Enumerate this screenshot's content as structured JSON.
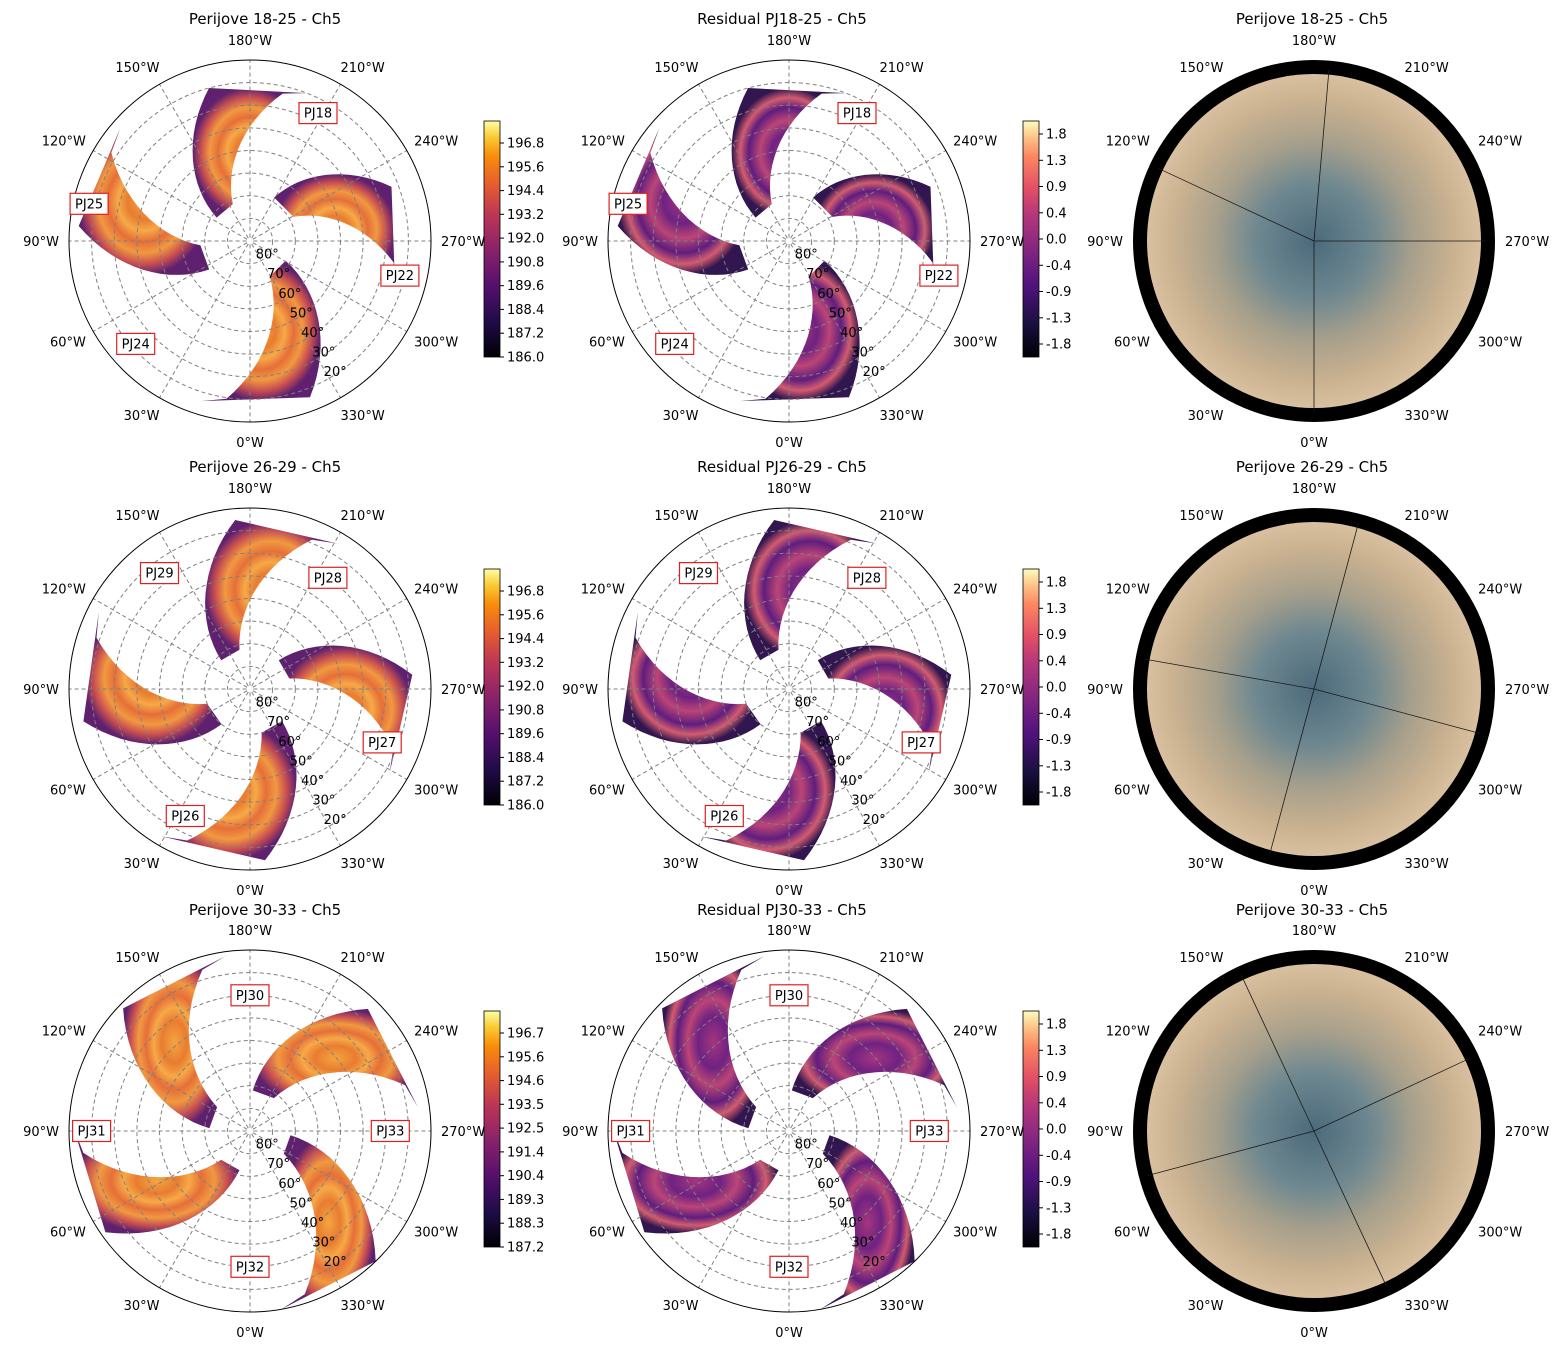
{
  "figure": {
    "rows": [
      {
        "mosaic": {
          "title": "Perijove 18-25 - Ch5",
          "colorbar_ticks": [
            "186.0",
            "187.2",
            "188.4",
            "189.6",
            "190.8",
            "192.0",
            "193.2",
            "194.4",
            "195.6",
            "196.8"
          ],
          "perijove_labels": [
            {
              "text": "PJ18",
              "lon_w": 208,
              "lat": 26
            },
            {
              "text": "PJ22",
              "lon_w": 283,
              "lat": 22
            },
            {
              "text": "PJ24",
              "lon_w": 48,
              "lat": 22
            },
            {
              "text": "PJ25",
              "lon_w": 103,
              "lat": 17
            }
          ],
          "swaths": [
            {
              "center_lon_w": 225,
              "width_deg": 32,
              "lat_min": 23,
              "lat_max": 68
            },
            {
              "center_lon_w": 315,
              "width_deg": 32,
              "lat_min": 16,
              "lat_max": 72
            },
            {
              "center_lon_w": 70,
              "width_deg": 30,
              "lat_min": 14,
              "lat_max": 68
            },
            {
              "center_lon_w": 140,
              "width_deg": 30,
              "lat_min": 20,
              "lat_max": 72
            }
          ]
        },
        "residual": {
          "title": "Residual PJ18-25 - Ch5",
          "colorbar_ticks": [
            "-1.8",
            "-1.3",
            "-0.9",
            "-0.4",
            "0.0",
            "0.4",
            "0.9",
            "1.3",
            "1.8"
          ]
        },
        "composite": {
          "title": "Perijove 18-25 - Ch5"
        }
      },
      {
        "mosaic": {
          "title": "Perijove 26-29 - Ch5",
          "colorbar_ticks": [
            "186.0",
            "187.2",
            "188.4",
            "189.6",
            "190.8",
            "192.0",
            "193.2",
            "194.4",
            "195.6",
            "196.8"
          ],
          "perijove_labels": [
            {
              "text": "PJ28",
              "lon_w": 215,
              "lat": 30
            },
            {
              "text": "PJ27",
              "lon_w": 292,
              "lat": 27
            },
            {
              "text": "PJ26",
              "lon_w": 27,
              "lat": 27
            },
            {
              "text": "PJ29",
              "lon_w": 142,
              "lat": 25
            }
          ],
          "swaths": [
            {
              "center_lon_w": 240,
              "width_deg": 30,
              "lat_min": 18,
              "lat_max": 72
            },
            {
              "center_lon_w": 330,
              "width_deg": 30,
              "lat_min": 14,
              "lat_max": 70
            },
            {
              "center_lon_w": 55,
              "width_deg": 32,
              "lat_min": 15,
              "lat_max": 70
            },
            {
              "center_lon_w": 150,
              "width_deg": 30,
              "lat_min": 15,
              "lat_max": 72
            }
          ]
        },
        "residual": {
          "title": "Residual PJ26-29 - Ch5",
          "colorbar_ticks": [
            "-1.8",
            "-1.3",
            "-0.9",
            "-0.4",
            "0.0",
            "0.4",
            "0.9",
            "1.3",
            "1.8"
          ]
        },
        "composite": {
          "title": "Perijove 26-29 - Ch5"
        }
      },
      {
        "mosaic": {
          "title": "Perijove 30-33 - Ch5",
          "colorbar_ticks": [
            "187.2",
            "188.3",
            "189.3",
            "190.4",
            "191.4",
            "192.5",
            "193.5",
            "194.6",
            "195.6",
            "196.7"
          ],
          "perijove_labels": [
            {
              "text": "PJ30",
              "lon_w": 180,
              "lat": 30
            },
            {
              "text": "PJ33",
              "lon_w": 270,
              "lat": 28
            },
            {
              "text": "PJ32",
              "lon_w": 0,
              "lat": 30
            },
            {
              "text": "PJ31",
              "lon_w": 90,
              "lat": 20
            }
          ],
          "swaths": [
            {
              "center_lon_w": 200,
              "width_deg": 32,
              "lat_min": 15,
              "lat_max": 72
            },
            {
              "center_lon_w": 290,
              "width_deg": 28,
              "lat_min": 10,
              "lat_max": 72
            },
            {
              "center_lon_w": 30,
              "width_deg": 30,
              "lat_min": 12,
              "lat_max": 72
            },
            {
              "center_lon_w": 110,
              "width_deg": 32,
              "lat_min": 12,
              "lat_max": 72
            }
          ]
        },
        "residual": {
          "title": "Residual PJ30-33 - Ch5",
          "colorbar_ticks": [
            "-1.8",
            "-1.3",
            "-0.9",
            "-0.4",
            "0.0",
            "0.4",
            "0.9",
            "1.3",
            "1.8"
          ]
        },
        "composite": {
          "title": "Perijove 30-33 - Ch5"
        }
      }
    ],
    "longitude_labels": [
      "0°W",
      "30°W",
      "60°W",
      "90°W",
      "120°W",
      "150°W",
      "180°W",
      "210°W",
      "240°W",
      "270°W",
      "300°W",
      "330°W"
    ],
    "latitude_labels": [
      "80°",
      "70°",
      "60°",
      "50°",
      "40°",
      "30°",
      "20°"
    ]
  },
  "chart_data": [
    {
      "type": "heatmap",
      "projection": "polar (south pole)",
      "title": "Perijove 18-25 - Ch5",
      "colorbar_range": [
        186.0,
        197.8
      ],
      "colormap": "inferno-like",
      "x_ticks": [
        "0°W",
        "30°W",
        "60°W",
        "90°W",
        "120°W",
        "150°W",
        "180°W",
        "210°W",
        "240°W",
        "270°W",
        "300°W",
        "330°W"
      ],
      "radial_ticks": [
        "80°",
        "70°",
        "60°",
        "50°",
        "40°",
        "30°",
        "20°"
      ],
      "annotations": [
        "PJ18",
        "PJ22",
        "PJ24",
        "PJ25"
      ]
    },
    {
      "type": "heatmap",
      "projection": "polar (south pole)",
      "title": "Residual PJ18-25 - Ch5",
      "colorbar_range": [
        -2.0,
        2.0
      ],
      "colormap": "magma-like",
      "annotations": [
        "PJ18",
        "PJ22",
        "PJ24",
        "PJ25"
      ]
    },
    {
      "type": "heatmap",
      "projection": "polar (south pole)",
      "title": "Perijove 18-25 - Ch5",
      "description": "visible-light composite"
    },
    {
      "type": "heatmap",
      "projection": "polar (south pole)",
      "title": "Perijove 26-29 - Ch5",
      "colorbar_range": [
        186.0,
        197.8
      ],
      "annotations": [
        "PJ26",
        "PJ27",
        "PJ28",
        "PJ29"
      ]
    },
    {
      "type": "heatmap",
      "projection": "polar (south pole)",
      "title": "Residual PJ26-29 - Ch5",
      "colorbar_range": [
        -2.0,
        2.0
      ],
      "annotations": [
        "PJ26",
        "PJ27",
        "PJ28",
        "PJ29"
      ]
    },
    {
      "type": "heatmap",
      "projection": "polar (south pole)",
      "title": "Perijove 26-29 - Ch5"
    },
    {
      "type": "heatmap",
      "projection": "polar (south pole)",
      "title": "Perijove 30-33 - Ch5",
      "colorbar_range": [
        187.2,
        197.2
      ],
      "annotations": [
        "PJ30",
        "PJ31",
        "PJ32",
        "PJ33"
      ]
    },
    {
      "type": "heatmap",
      "projection": "polar (south pole)",
      "title": "Residual PJ30-33 - Ch5",
      "colorbar_range": [
        -2.0,
        2.0
      ],
      "annotations": [
        "PJ30",
        "PJ31",
        "PJ32",
        "PJ33"
      ]
    },
    {
      "type": "heatmap",
      "projection": "polar (south pole)",
      "title": "Perijove 30-33 - Ch5"
    }
  ]
}
